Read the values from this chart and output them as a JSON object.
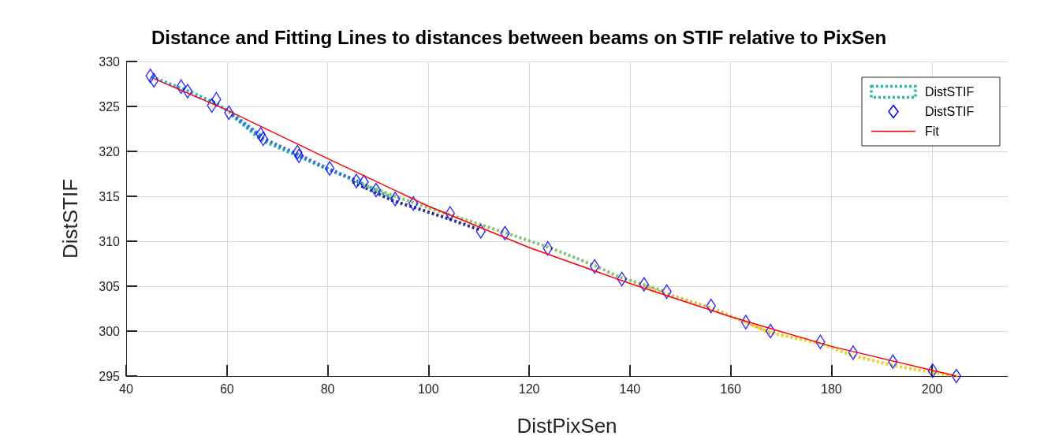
{
  "chart_data": {
    "type": "line",
    "title": "Distance and Fitting Lines to distances between beams on STIF relative to PixSen",
    "xlabel": "DistPixSen",
    "ylabel": "DistSTIF",
    "xlim": [
      40,
      215
    ],
    "xticks": [
      40,
      60,
      80,
      100,
      120,
      140,
      160,
      180,
      200
    ],
    "ylim": [
      295,
      330
    ],
    "yticks": [
      295,
      300,
      305,
      310,
      315,
      320,
      325,
      330
    ],
    "grid": true,
    "legend": "top right",
    "series": [
      {
        "name": "DistSTIF",
        "line_style": "dotted",
        "color": "#2ab8a0",
        "x": [
          61,
          67,
          74,
          80,
          87,
          93
        ],
        "values": [
          324.0,
          321.2,
          319.5,
          318.0,
          316.4,
          314.8
        ]
      },
      {
        "type": "line",
        "line_style": "dotted",
        "color": "#29b6d6",
        "x": [
          45,
          52,
          58,
          61,
          67
        ],
        "values": [
          328.3,
          326.8,
          325.3,
          324.2,
          321.7
        ]
      },
      {
        "type": "line",
        "line_style": "dotted",
        "color": "#3a70d8",
        "x": [
          61,
          67,
          74,
          80,
          86
        ],
        "values": [
          324.1,
          321.5,
          319.7,
          318.1,
          316.7
        ]
      },
      {
        "type": "line",
        "line_style": "dotted",
        "color": "#2e2e8a",
        "x": [
          85,
          93,
          97,
          104,
          110
        ],
        "values": [
          316.6,
          314.5,
          313.8,
          312.5,
          311.3
        ]
      },
      {
        "type": "line",
        "line_style": "dotted",
        "color": "#8abf70",
        "x": [
          86,
          97,
          104,
          115,
          124,
          133,
          138,
          147
        ],
        "values": [
          316.5,
          314.3,
          313.0,
          311.0,
          309.3,
          307.3,
          306.0,
          304.4
        ]
      },
      {
        "type": "line",
        "line_style": "dotted",
        "color": "#e0b84a",
        "x": [
          143,
          147,
          156,
          163,
          168
        ],
        "values": [
          305.0,
          304.2,
          302.6,
          301.0,
          299.8
        ]
      },
      {
        "type": "line",
        "line_style": "dotted",
        "color": "#f0d020",
        "x": [
          163,
          168,
          178,
          184,
          192,
          200,
          205
        ],
        "values": [
          301.0,
          299.8,
          298.6,
          297.3,
          296.2,
          295.4,
          295.0
        ]
      },
      {
        "name": "DistSTIF",
        "type": "scatter",
        "marker": "diamond",
        "color": "#0000ff",
        "x": [
          44.8,
          45.5,
          50.9,
          52.2,
          57.0,
          57.9,
          60.4,
          66.7,
          67.2,
          74.0,
          74.3,
          80.4,
          85.7,
          87.2,
          89.6,
          93.4,
          97.0,
          104.3,
          110.4,
          115.2,
          123.7,
          133.0,
          138.4,
          142.8,
          147.3,
          156.1,
          163.0,
          167.9,
          177.8,
          184.3,
          192.2,
          200.1,
          204.8
        ],
        "values": [
          328.4,
          327.9,
          327.2,
          326.7,
          325.1,
          325.8,
          324.3,
          321.9,
          321.4,
          319.9,
          319.5,
          318.1,
          316.7,
          316.6,
          315.7,
          314.7,
          314.2,
          313.1,
          311.1,
          310.9,
          309.2,
          307.2,
          305.8,
          305.2,
          304.4,
          302.8,
          301.0,
          300.0,
          298.8,
          297.6,
          296.6,
          295.6,
          295.0
        ]
      },
      {
        "name": "Fit",
        "line_style": "solid",
        "color": "#ff0000",
        "x": [
          45.5,
          60,
          80,
          100,
          120,
          140,
          160,
          180,
          204.8
        ],
        "values": [
          328.1,
          324.6,
          319.2,
          313.9,
          309.3,
          305.3,
          301.6,
          298.3,
          295.0
        ]
      }
    ]
  }
}
